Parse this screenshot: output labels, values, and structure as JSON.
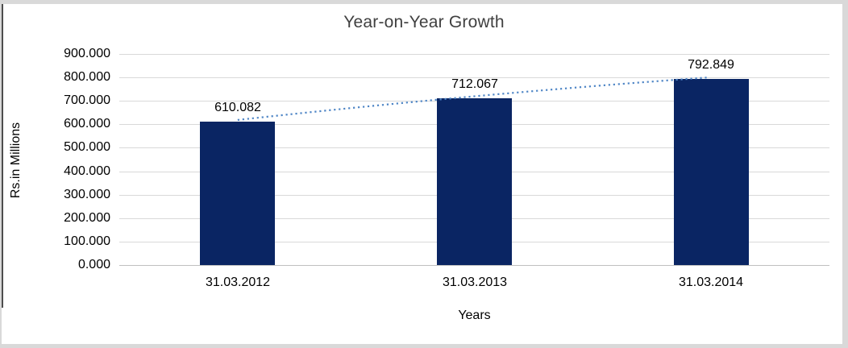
{
  "chart_data": {
    "type": "bar",
    "title": "Year-on-Year Growth",
    "xlabel": "Years",
    "ylabel": "Rs.in Millions",
    "categories": [
      "31.03.2012",
      "31.03.2013",
      "31.03.2014"
    ],
    "values": [
      610.082,
      712.067,
      792.849
    ],
    "data_labels": [
      "610.082",
      "712.067",
      "792.849"
    ],
    "ylim": [
      0,
      900
    ],
    "ytick_step": 100,
    "ytick_labels_top_to_bottom": [
      "900.000",
      "800.000",
      "700.000",
      "600.000",
      "500.000",
      "400.000",
      "300.000",
      "200.000",
      "100.000",
      "0.000"
    ],
    "grid": true,
    "legend": "none",
    "trendline": {
      "style": "dotted",
      "spans": "first-bar-center-to-last-bar-center"
    },
    "colors": {
      "bar": "#0A2563",
      "trendline": "#4F86C6",
      "gridline": "#D9D9D9",
      "axis_baseline": "#BFBFBF",
      "title_text": "#404040",
      "axis_text": "#000000",
      "frame_edge": "#D9D9D9"
    }
  }
}
